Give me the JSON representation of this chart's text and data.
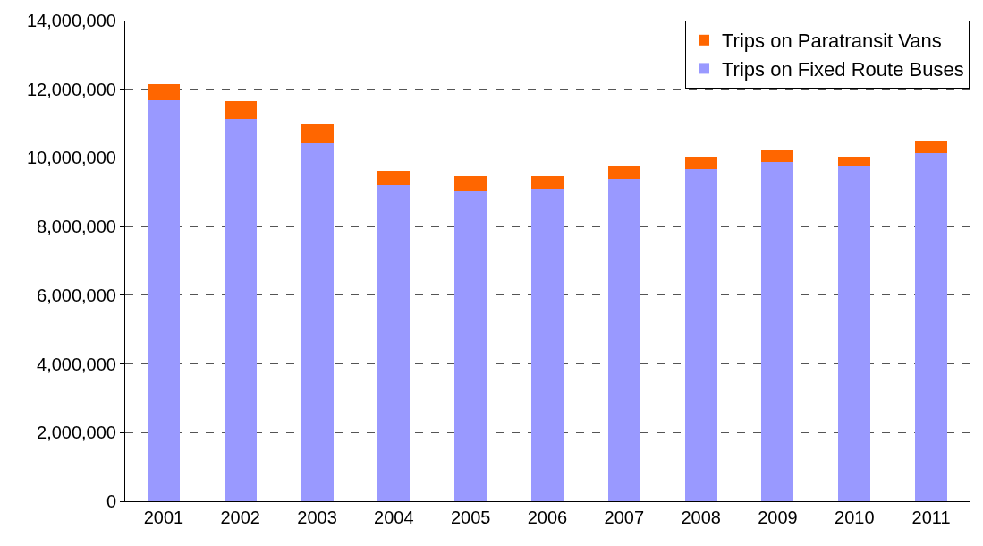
{
  "chart_data": {
    "type": "bar",
    "stacked": true,
    "categories": [
      "2001",
      "2002",
      "2003",
      "2004",
      "2005",
      "2006",
      "2007",
      "2008",
      "2009",
      "2010",
      "2011"
    ],
    "series": [
      {
        "name": "Trips on Fixed Route Buses",
        "color": "#9999ff",
        "values": [
          11690000,
          11140000,
          10420000,
          9210000,
          9050000,
          9100000,
          9390000,
          9680000,
          9890000,
          9740000,
          10130000
        ]
      },
      {
        "name": "Trips on Paratransit Vans",
        "color": "#ff6600",
        "values": [
          450000,
          520000,
          560000,
          420000,
          420000,
          370000,
          370000,
          370000,
          320000,
          310000,
          370000
        ]
      }
    ],
    "ylim": [
      0,
      14000000
    ],
    "yticks": [
      {
        "value": 0,
        "label": "0"
      },
      {
        "value": 2000000,
        "label": "2,000,000"
      },
      {
        "value": 4000000,
        "label": "4,000,000"
      },
      {
        "value": 6000000,
        "label": "6,000,000"
      },
      {
        "value": 8000000,
        "label": "8,000,000"
      },
      {
        "value": 10000000,
        "label": "10,000,000"
      },
      {
        "value": 12000000,
        "label": "12,000,000"
      },
      {
        "value": 14000000,
        "label": "14,000,000"
      }
    ],
    "grid": "y",
    "legend": "top right"
  }
}
